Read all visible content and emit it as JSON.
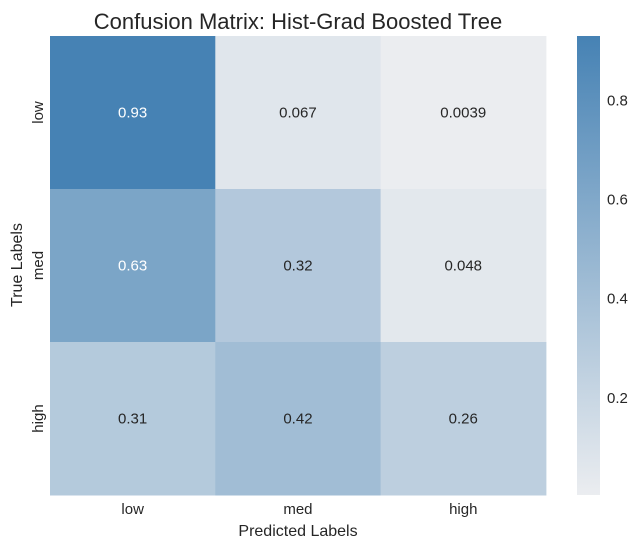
{
  "chart_data": {
    "type": "heatmap",
    "title": "Confusion Matrix: Hist-Grad Boosted Tree",
    "xlabel": "Predicted Labels",
    "ylabel": "True Labels",
    "x_categories": [
      "low",
      "med",
      "high"
    ],
    "y_categories": [
      "low",
      "med",
      "high"
    ],
    "values": [
      [
        0.93,
        0.067,
        0.0039
      ],
      [
        0.63,
        0.32,
        0.048
      ],
      [
        0.31,
        0.42,
        0.26
      ]
    ],
    "value_labels": [
      [
        "0.93",
        "0.067",
        "0.0039"
      ],
      [
        "0.63",
        "0.32",
        "0.048"
      ],
      [
        "0.31",
        "0.42",
        "0.26"
      ]
    ],
    "colorbar": {
      "range": [
        0.0039,
        0.93
      ],
      "ticks": [
        0.2,
        0.4,
        0.6,
        0.8
      ],
      "tick_labels": [
        "0.2",
        "0.4",
        "0.6",
        "0.8"
      ],
      "color_low": "#ebedf0",
      "color_high": "#4682b4"
    },
    "annotation_colors": {
      "dark_bg": "#ffffff",
      "light_bg": "#262626"
    }
  }
}
